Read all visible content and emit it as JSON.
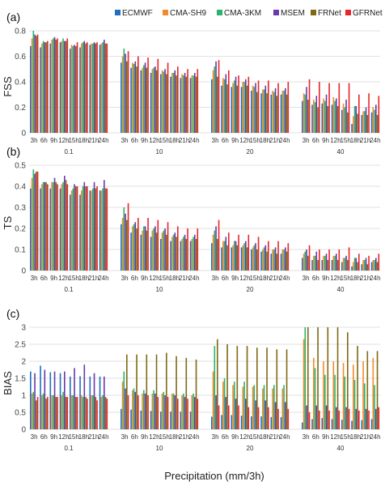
{
  "figure": {
    "xlabel": "Precipitation (mm/3h)"
  },
  "legend": {
    "items": [
      {
        "name": "ECMWF",
        "color": "#1f6fc0"
      },
      {
        "name": "CMA-SH9",
        "color": "#f28a2e"
      },
      {
        "name": "CMA-3KM",
        "color": "#2bb36b"
      },
      {
        "name": "MSEM",
        "color": "#6a3aa8"
      },
      {
        "name": "FRNet",
        "color": "#7f6a14"
      },
      {
        "name": "GFRNet",
        "color": "#e8262a"
      }
    ]
  },
  "chart_data": [
    {
      "type": "bar",
      "panel_label": "(a)",
      "ylabel": "FSS",
      "ylim": [
        0,
        0.8
      ],
      "yticks": [
        "0",
        "0.2",
        "0.4",
        "0.6",
        "0.8"
      ],
      "groups": [
        "0.1",
        "10",
        "20",
        "40"
      ],
      "categories": [
        "3h",
        "6h",
        "9h",
        "12h",
        "15h",
        "18h",
        "21h",
        "24h"
      ],
      "grid": true,
      "series": [
        {
          "name": "ECMWF",
          "values": [
            [
              0.68,
              0.67,
              0.7,
              0.71,
              0.66,
              0.67,
              0.69,
              0.69
            ],
            [
              0.55,
              0.51,
              0.49,
              0.47,
              0.46,
              0.44,
              0.43,
              0.43
            ],
            [
              0.42,
              0.37,
              0.36,
              0.36,
              0.33,
              0.31,
              0.3,
              0.3
            ],
            [
              0.25,
              0.22,
              0.23,
              0.22,
              0.18,
              0.07,
              0.14,
              0.16
            ]
          ]
        },
        {
          "name": "CMA-SH9",
          "values": [
            [
              0.74,
              0.7,
              0.73,
              0.72,
              0.69,
              0.7,
              0.7,
              0.7
            ],
            [
              0.6,
              0.55,
              0.51,
              0.5,
              0.49,
              0.47,
              0.46,
              0.45
            ],
            [
              0.49,
              0.43,
              0.39,
              0.4,
              0.37,
              0.34,
              0.33,
              0.33
            ],
            [
              0.31,
              0.26,
              0.27,
              0.28,
              0.23,
              0.13,
              0.17,
              0.2
            ]
          ]
        },
        {
          "name": "CMA-3KM",
          "values": [
            [
              0.81,
              0.72,
              0.74,
              0.74,
              0.68,
              0.71,
              0.7,
              0.71
            ],
            [
              0.66,
              0.54,
              0.53,
              0.51,
              0.48,
              0.47,
              0.45,
              0.45
            ],
            [
              0.52,
              0.42,
              0.41,
              0.4,
              0.36,
              0.34,
              0.32,
              0.33
            ],
            [
              0.3,
              0.24,
              0.25,
              0.25,
              0.2,
              0.21,
              0.17,
              0.18
            ]
          ]
        },
        {
          "name": "MSEM",
          "values": [
            [
              0.77,
              0.71,
              0.75,
              0.72,
              0.69,
              0.72,
              0.71,
              0.73
            ],
            [
              0.62,
              0.56,
              0.55,
              0.52,
              0.5,
              0.49,
              0.47,
              0.47
            ],
            [
              0.56,
              0.46,
              0.44,
              0.42,
              0.39,
              0.37,
              0.35,
              0.35
            ],
            [
              0.36,
              0.29,
              0.3,
              0.27,
              0.26,
              0.21,
              0.2,
              0.22
            ]
          ]
        },
        {
          "name": "FRNet",
          "values": [
            [
              0.76,
              0.71,
              0.73,
              0.72,
              0.68,
              0.7,
              0.7,
              0.7
            ],
            [
              0.56,
              0.52,
              0.51,
              0.49,
              0.46,
              0.45,
              0.44,
              0.44
            ],
            [
              0.44,
              0.38,
              0.37,
              0.37,
              0.32,
              0.31,
              0.29,
              0.3
            ],
            [
              0.26,
              0.2,
              0.21,
              0.21,
              0.16,
              0.15,
              0.14,
              0.14
            ]
          ]
        },
        {
          "name": "GFRNet",
          "values": [
            [
              0.77,
              0.72,
              0.74,
              0.74,
              0.71,
              0.71,
              0.71,
              0.7
            ],
            [
              0.64,
              0.6,
              0.59,
              0.58,
              0.55,
              0.52,
              0.5,
              0.5
            ],
            [
              0.57,
              0.49,
              0.45,
              0.44,
              0.41,
              0.41,
              0.39,
              0.4
            ],
            [
              0.42,
              0.4,
              0.39,
              0.39,
              0.39,
              0.3,
              0.31,
              0.29
            ]
          ]
        }
      ]
    },
    {
      "type": "bar",
      "panel_label": "(b)",
      "ylabel": "TS",
      "ylim": [
        0,
        0.5
      ],
      "yticks": [
        "0",
        "0.1",
        "0.2",
        "0.3",
        "0.4",
        "0.5"
      ],
      "groups": [
        "0.1",
        "10",
        "20",
        "40"
      ],
      "categories": [
        "3h",
        "6h",
        "9h",
        "12h",
        "15h",
        "18h",
        "21h",
        "24h"
      ],
      "grid": true,
      "series": [
        {
          "name": "ECMWF",
          "values": [
            [
              0.39,
              0.39,
              0.39,
              0.39,
              0.36,
              0.36,
              0.38,
              0.38
            ],
            [
              0.22,
              0.18,
              0.17,
              0.16,
              0.15,
              0.14,
              0.14,
              0.14
            ],
            [
              0.13,
              0.11,
              0.11,
              0.11,
              0.1,
              0.09,
              0.08,
              0.08
            ],
            [
              0.06,
              0.05,
              0.05,
              0.05,
              0.04,
              0.02,
              0.03,
              0.04
            ]
          ]
        },
        {
          "name": "CMA-SH9",
          "values": [
            [
              0.44,
              0.41,
              0.42,
              0.41,
              0.38,
              0.38,
              0.38,
              0.38
            ],
            [
              0.25,
              0.21,
              0.19,
              0.19,
              0.18,
              0.16,
              0.15,
              0.15
            ],
            [
              0.17,
              0.14,
              0.12,
              0.12,
              0.11,
              0.1,
              0.1,
              0.1
            ],
            [
              0.08,
              0.07,
              0.07,
              0.07,
              0.06,
              0.04,
              0.05,
              0.05
            ]
          ]
        },
        {
          "name": "CMA-3KM",
          "values": [
            [
              0.48,
              0.42,
              0.42,
              0.42,
              0.39,
              0.4,
              0.39,
              0.39
            ],
            [
              0.3,
              0.22,
              0.21,
              0.2,
              0.19,
              0.17,
              0.16,
              0.16
            ],
            [
              0.19,
              0.14,
              0.14,
              0.13,
              0.12,
              0.11,
              0.1,
              0.1
            ],
            [
              0.09,
              0.07,
              0.07,
              0.07,
              0.06,
              0.06,
              0.05,
              0.05
            ]
          ]
        },
        {
          "name": "MSEM",
          "values": [
            [
              0.46,
              0.42,
              0.44,
              0.45,
              0.41,
              0.42,
              0.42,
              0.43
            ],
            [
              0.27,
              0.23,
              0.21,
              0.21,
              0.2,
              0.18,
              0.17,
              0.17
            ],
            [
              0.21,
              0.16,
              0.14,
              0.14,
              0.13,
              0.12,
              0.11,
              0.11
            ],
            [
              0.1,
              0.09,
              0.08,
              0.08,
              0.07,
              0.06,
              0.06,
              0.06
            ]
          ]
        },
        {
          "name": "FRNet",
          "values": [
            [
              0.47,
              0.42,
              0.42,
              0.43,
              0.4,
              0.4,
              0.39,
              0.39
            ],
            [
              0.24,
              0.2,
              0.19,
              0.18,
              0.17,
              0.16,
              0.15,
              0.15
            ],
            [
              0.15,
              0.12,
              0.12,
              0.11,
              0.1,
              0.09,
              0.08,
              0.09
            ],
            [
              0.07,
              0.05,
              0.05,
              0.05,
              0.05,
              0.04,
              0.03,
              0.04
            ]
          ]
        },
        {
          "name": "GFRNet",
          "values": [
            [
              0.47,
              0.41,
              0.41,
              0.41,
              0.4,
              0.4,
              0.4,
              0.39
            ],
            [
              0.32,
              0.25,
              0.25,
              0.24,
              0.23,
              0.21,
              0.2,
              0.2
            ],
            [
              0.24,
              0.18,
              0.17,
              0.17,
              0.16,
              0.14,
              0.14,
              0.13
            ],
            [
              0.12,
              0.1,
              0.1,
              0.1,
              0.11,
              0.08,
              0.07,
              0.08
            ]
          ]
        }
      ]
    },
    {
      "type": "bar",
      "panel_label": "(c)",
      "ylabel": "BIAS",
      "ylim": [
        0,
        3
      ],
      "yticks": [
        "0",
        "0.5",
        "1",
        "1.5",
        "2",
        "2.5",
        "3"
      ],
      "groups": [
        "0.1",
        "10",
        "20",
        "40"
      ],
      "categories": [
        "3h",
        "6h",
        "9h",
        "12h",
        "15h",
        "18h",
        "21h",
        "24h"
      ],
      "grid": true,
      "series": [
        {
          "name": "ECMWF",
          "values": [
            [
              1.7,
              1.87,
              1.68,
              1.65,
              1.55,
              1.56,
              1.55,
              1.55
            ],
            [
              0.6,
              0.58,
              0.55,
              0.54,
              0.52,
              0.52,
              0.52,
              0.52
            ],
            [
              0.37,
              0.42,
              0.42,
              0.4,
              0.38,
              0.38,
              0.36,
              0.36
            ],
            [
              0.2,
              0.3,
              0.33,
              0.3,
              0.28,
              0.25,
              0.27,
              0.3
            ]
          ]
        },
        {
          "name": "CMA-SH9",
          "values": [
            [
              1.05,
              1.0,
              1.0,
              1.0,
              1.0,
              1.0,
              1.0,
              0.95
            ],
            [
              1.4,
              1.15,
              1.05,
              1.05,
              1.05,
              1.05,
              1.0,
              1.0
            ],
            [
              1.7,
              1.4,
              1.3,
              1.25,
              1.25,
              1.2,
              1.2,
              1.2
            ],
            [
              2.65,
              2.1,
              2.0,
              2.0,
              1.95,
              1.9,
              2.0,
              2.1
            ]
          ]
        },
        {
          "name": "CMA-3KM",
          "values": [
            [
              1.1,
              1.05,
              1.0,
              1.1,
              1.0,
              0.95,
              1.0,
              1.0
            ],
            [
              1.7,
              1.2,
              1.15,
              1.15,
              1.1,
              1.05,
              1.05,
              1.05
            ],
            [
              2.45,
              1.5,
              1.4,
              1.4,
              1.3,
              1.3,
              1.3,
              1.3
            ],
            [
              3.0,
              1.8,
              1.6,
              1.6,
              1.55,
              1.45,
              1.35,
              1.3
            ]
          ]
        },
        {
          "name": "MSEM",
          "values": [
            [
              1.65,
              1.75,
              1.7,
              1.7,
              1.8,
              1.9,
              1.65,
              1.55
            ],
            [
              1.2,
              1.1,
              1.05,
              1.05,
              1.0,
              1.0,
              0.95,
              0.95
            ],
            [
              1.0,
              0.95,
              0.9,
              0.9,
              0.85,
              0.85,
              0.8,
              0.8
            ],
            [
              0.7,
              0.7,
              0.7,
              0.65,
              0.65,
              0.6,
              0.6,
              0.6
            ]
          ]
        },
        {
          "name": "FRNet",
          "values": [
            [
              0.85,
              0.9,
              0.95,
              0.95,
              0.95,
              0.95,
              0.95,
              0.95
            ],
            [
              2.2,
              2.2,
              2.2,
              2.2,
              2.25,
              2.15,
              2.1,
              2.05
            ],
            [
              2.65,
              2.5,
              2.45,
              2.45,
              2.4,
              2.4,
              2.35,
              2.35
            ],
            [
              3.0,
              3.0,
              3.0,
              3.0,
              2.85,
              2.45,
              2.3,
              2.3
            ]
          ]
        },
        {
          "name": "GFRNet",
          "values": [
            [
              0.95,
              0.95,
              0.95,
              0.95,
              0.95,
              0.9,
              0.85,
              0.9
            ],
            [
              1.0,
              1.0,
              1.0,
              0.95,
              0.95,
              0.9,
              0.9,
              0.9
            ],
            [
              0.7,
              0.7,
              0.7,
              0.65,
              0.65,
              0.65,
              0.6,
              0.6
            ],
            [
              0.5,
              0.55,
              0.55,
              0.55,
              0.6,
              0.55,
              0.55,
              0.65
            ]
          ]
        }
      ]
    }
  ]
}
